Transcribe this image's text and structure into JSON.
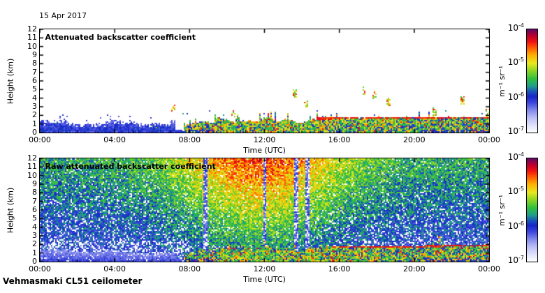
{
  "window": {
    "date_label": "15 Apr 2017",
    "instrument_label": "Vehmasmaki CL51 ceilometer"
  },
  "colormap": {
    "scale": "log",
    "stops": [
      {
        "t": 0.0,
        "color": "#ffffff"
      },
      {
        "t": 0.06,
        "color": "#e4e6fb"
      },
      {
        "t": 0.14,
        "color": "#bcc0f6"
      },
      {
        "t": 0.22,
        "color": "#7f86ea"
      },
      {
        "t": 0.29,
        "color": "#3c46dd"
      },
      {
        "t": 0.35,
        "color": "#1625c8"
      },
      {
        "t": 0.4,
        "color": "#1a57b8"
      },
      {
        "t": 0.45,
        "color": "#1f9e8a"
      },
      {
        "t": 0.52,
        "color": "#2fbf3f"
      },
      {
        "t": 0.6,
        "color": "#8fd622"
      },
      {
        "t": 0.67,
        "color": "#e8e81e"
      },
      {
        "t": 0.75,
        "color": "#ffb000"
      },
      {
        "t": 0.82,
        "color": "#ff5a00"
      },
      {
        "t": 0.88,
        "color": "#f01010"
      },
      {
        "t": 0.94,
        "color": "#b80030"
      },
      {
        "t": 1.0,
        "color": "#5c0a66"
      }
    ]
  },
  "chart_data": [
    {
      "type": "heatmap",
      "id": "attenuated",
      "title": "Attenuated backscatter coefficient",
      "xlabel": "Time (UTC)",
      "ylabel": "Height (km)",
      "xticks": [
        "00:00",
        "04:00",
        "08:00",
        "12:00",
        "16:00",
        "20:00",
        "00:00"
      ],
      "xtick_hours": [
        0,
        4,
        8,
        12,
        16,
        20,
        24
      ],
      "x_range_hours": [
        0,
        24
      ],
      "ylim": [
        0,
        12
      ],
      "yticks": [
        0,
        1,
        2,
        3,
        4,
        5,
        6,
        7,
        8,
        9,
        10,
        11,
        12
      ],
      "colorbar": {
        "unit": "m⁻¹ sr⁻¹",
        "tick_base": "10",
        "tick_exponents": [
          "-4",
          "-5",
          "-6",
          "-7"
        ],
        "min": "1e-7",
        "max": "1e-4"
      },
      "features": {
        "boundary_layer_night": {
          "hours": [
            0,
            7.6
          ],
          "top_km": 1.3,
          "appearance": "weak blue boundary layer, fading white above"
        },
        "aerosol_layer_day": {
          "hours": [
            7.7,
            24
          ],
          "top_km": 1.8,
          "appearance": "strong green/yellow/orange/red aerosol layer"
        },
        "red_cap_line": {
          "hours": [
            14.8,
            24
          ],
          "height_km": 1.62,
          "appearance": "thin red line at layer top"
        },
        "clouds": [
          {
            "hour": 7.15,
            "km": 2.9
          },
          {
            "hour": 10.35,
            "km": 2.3
          },
          {
            "hour": 13.62,
            "km": 4.5
          },
          {
            "hour": 14.2,
            "km": 3.3
          },
          {
            "hour": 17.32,
            "km": 4.85
          },
          {
            "hour": 17.9,
            "km": 4.35
          },
          {
            "hour": 18.6,
            "km": 3.6
          },
          {
            "hour": 21.1,
            "km": 2.4
          },
          {
            "hour": 22.55,
            "km": 3.7
          },
          {
            "hour": 23.9,
            "km": 2.3
          }
        ]
      }
    },
    {
      "type": "heatmap",
      "id": "raw",
      "title": "Raw attenuated backscatter coefficient",
      "xlabel": "Time (UTC)",
      "ylabel": "Height (km)",
      "xticks": [
        "00:00",
        "04:00",
        "08:00",
        "12:00",
        "16:00",
        "20:00",
        "00:00"
      ],
      "xtick_hours": [
        0,
        4,
        8,
        12,
        16,
        20,
        24
      ],
      "x_range_hours": [
        0,
        24
      ],
      "ylim": [
        0,
        12
      ],
      "yticks": [
        0,
        1,
        2,
        3,
        4,
        5,
        6,
        7,
        8,
        9,
        10,
        11,
        12
      ],
      "colorbar": {
        "unit": "m⁻¹ sr⁻¹",
        "tick_base": "10",
        "tick_exponents": [
          "-4",
          "-5",
          "-6",
          "-7"
        ],
        "min": "1e-7",
        "max": "1e-4"
      },
      "features": {
        "noise": {
          "peak_hour": 11.8,
          "appearance": "daylight background noise: red/orange aloft near midday, green mid-levels, blue speckle at night and evening, pale speckle at low altitude at night"
        },
        "pale_stripes_hours": [
          8.85,
          12.0,
          13.7,
          14.3
        ],
        "boundary_layer_night": {
          "hours": [
            0,
            7.6
          ],
          "top_km": 1.2,
          "appearance": "smooth pale-blue layer"
        },
        "aerosol_layer_day": {
          "hours": [
            7.7,
            24
          ],
          "top_km": 1.8,
          "appearance": "strong yellow/orange/red aerosol layer"
        },
        "red_cap_line": {
          "hours": [
            15.5,
            24
          ],
          "height_km": 1.68,
          "appearance": "thin red line at layer top"
        },
        "clouds": [
          {
            "hour": 21.3,
            "km": 2.6
          }
        ]
      }
    }
  ]
}
